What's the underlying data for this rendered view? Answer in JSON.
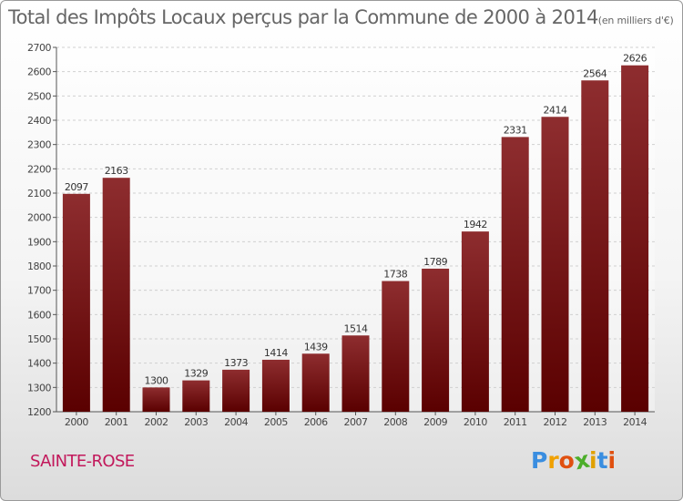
{
  "chart_data": {
    "type": "bar",
    "title": "Total des Impôts Locaux perçus par la Commune de 2000 à 2014",
    "subtitle": "(en milliers d'€)",
    "categories": [
      "2000",
      "2001",
      "2002",
      "2003",
      "2004",
      "2005",
      "2006",
      "2007",
      "2008",
      "2009",
      "2010",
      "2011",
      "2012",
      "2013",
      "2014"
    ],
    "values": [
      2097,
      2163,
      1300,
      1329,
      1373,
      1414,
      1439,
      1514,
      1738,
      1789,
      1942,
      2331,
      2414,
      2564,
      2626
    ],
    "ylim": [
      1200,
      2700
    ],
    "yticks": [
      1200,
      1300,
      1400,
      1500,
      1600,
      1700,
      1800,
      1900,
      2000,
      2100,
      2200,
      2300,
      2400,
      2500,
      2600,
      2700
    ],
    "xlabel": "",
    "ylabel": "",
    "grid": true,
    "bar_color_top": "#8e2d2f",
    "bar_color_bottom": "#5a0000"
  },
  "commune": "SAINTE-ROSE",
  "logo": {
    "text": "Proxiti",
    "letters": [
      "P",
      "r",
      "o",
      "x",
      "i",
      "t",
      "i"
    ],
    "colors": [
      "#3a8ee0",
      "#f0a000",
      "#e05010",
      "#4cae2a",
      "#e0a000",
      "#3a8ee0",
      "#e05010"
    ]
  }
}
